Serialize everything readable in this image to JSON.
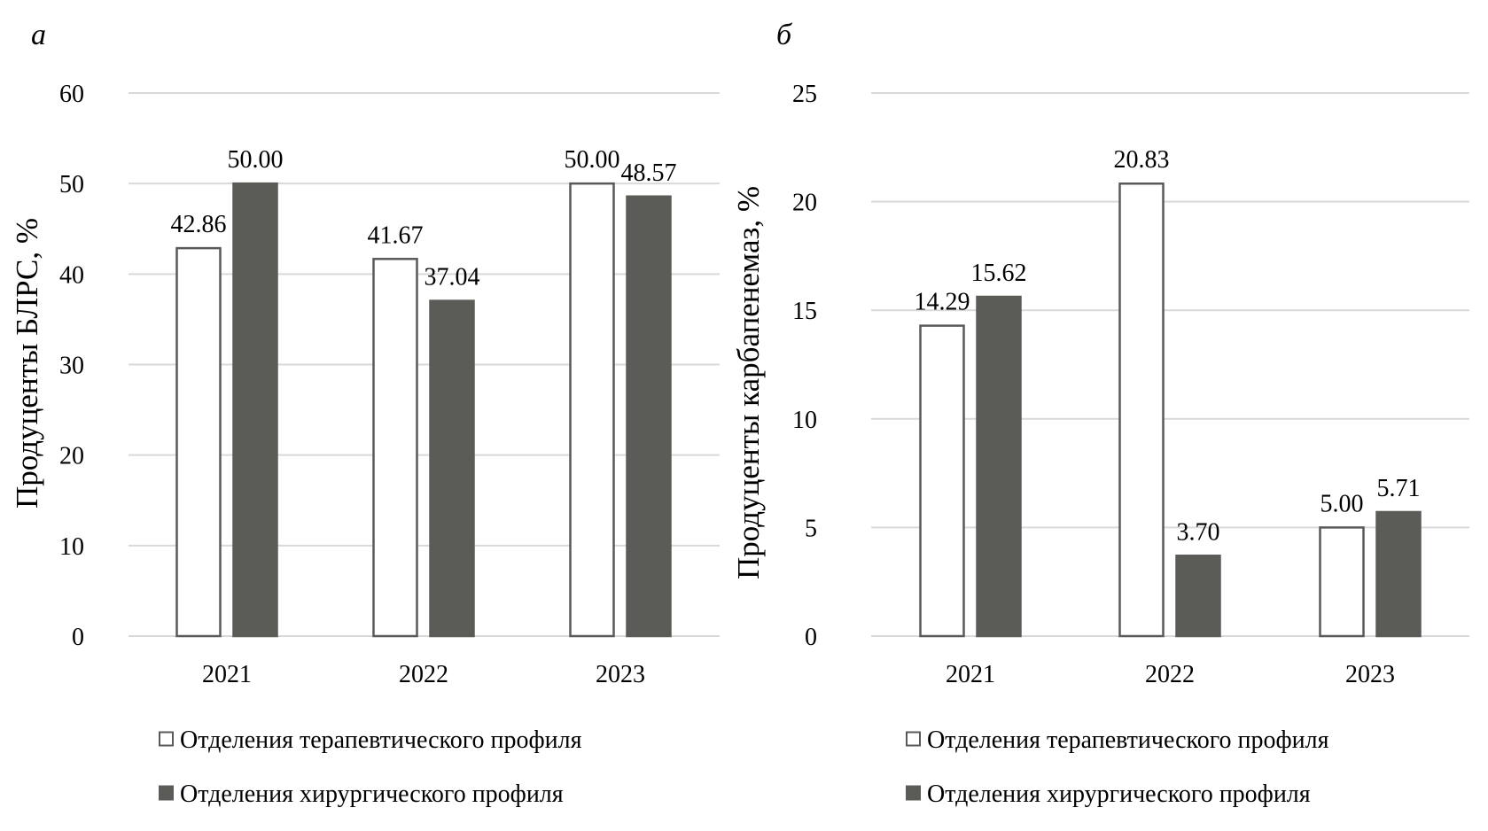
{
  "chart_data": [
    {
      "type": "bar",
      "panel_label": "а",
      "title": "",
      "xlabel": "",
      "ylabel": "Продуценты БЛРС, %",
      "ylim": [
        0,
        60
      ],
      "yticks": [
        0,
        10,
        20,
        30,
        40,
        50,
        60
      ],
      "grid": true,
      "legend_position": "bottom",
      "categories": [
        "2021",
        "2022",
        "2023"
      ],
      "series": [
        {
          "name": "Отделения терапевтического профиля",
          "fill": "#ffffff",
          "stroke": "#595959",
          "values": [
            42.86,
            41.67,
            50.0
          ],
          "labels": [
            "42.86",
            "41.67",
            "50.00"
          ]
        },
        {
          "name": "Отделения хирургического профиля",
          "fill": "#5b5b57",
          "stroke": "#5b5b57",
          "values": [
            50.0,
            37.04,
            48.57
          ],
          "labels": [
            "50.00",
            "37.04",
            "48.57"
          ]
        }
      ]
    },
    {
      "type": "bar",
      "panel_label": "б",
      "title": "",
      "xlabel": "",
      "ylabel": "Продуценты карбапенемаз, %",
      "ylim": [
        0,
        25
      ],
      "yticks": [
        0,
        5,
        10,
        15,
        20,
        25
      ],
      "grid": true,
      "legend_position": "bottom",
      "categories": [
        "2021",
        "2022",
        "2023"
      ],
      "series": [
        {
          "name": "Отделения терапевтического профиля",
          "fill": "#ffffff",
          "stroke": "#595959",
          "values": [
            14.29,
            20.83,
            5.0
          ],
          "labels": [
            "14.29",
            "20.83",
            "5.00"
          ]
        },
        {
          "name": "Отделения хирургического профиля",
          "fill": "#5b5b57",
          "stroke": "#5b5b57",
          "values": [
            15.62,
            3.7,
            5.71
          ],
          "labels": [
            "15.62",
            "3.70",
            "5.71"
          ]
        }
      ]
    }
  ]
}
